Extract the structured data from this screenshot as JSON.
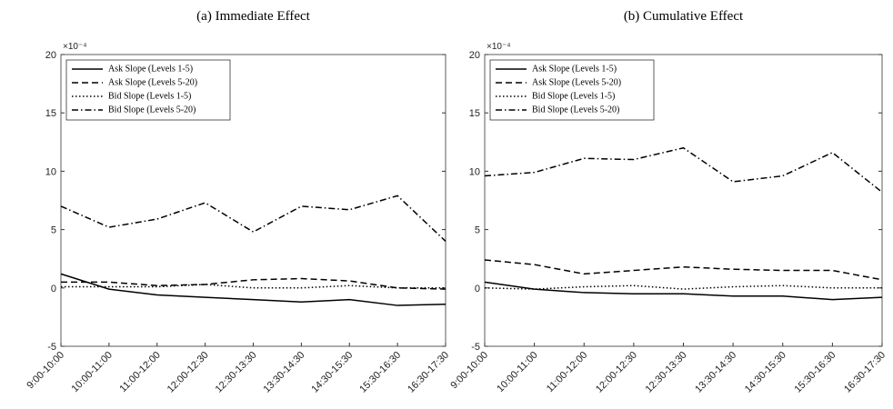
{
  "chart_data": [
    {
      "type": "line",
      "title": "(a) Immediate Effect",
      "y_multiplier": "×10⁻⁴",
      "categories": [
        "9:00-10:00",
        "10:00-11:00",
        "11:00-12:00",
        "12:00-12:30",
        "12:30-13:30",
        "13:30-14:30",
        "14:30-15:30",
        "15:30-16:30",
        "16:30-17:30"
      ],
      "ylim": [
        -5,
        20
      ],
      "yticks": [
        -5,
        0,
        5,
        10,
        15,
        20
      ],
      "legend": "upper left",
      "series": [
        {
          "name": "Ask Slope (Levels 1-5)",
          "color": "#000000",
          "dash": "solid",
          "values": [
            1.2,
            -0.1,
            -0.6,
            -0.8,
            -1.0,
            -1.2,
            -1.0,
            -1.5,
            -1.4
          ]
        },
        {
          "name": "Ask Slope (Levels 5-20)",
          "color": "#000000",
          "dash": "dashed",
          "values": [
            0.5,
            0.5,
            0.2,
            0.3,
            0.7,
            0.8,
            0.6,
            0.0,
            -0.1
          ]
        },
        {
          "name": "Bid Slope (Levels 1-5)",
          "color": "#000000",
          "dash": "dotted",
          "values": [
            0.1,
            0.1,
            0.1,
            0.3,
            0.0,
            0.0,
            0.2,
            0.0,
            0.0
          ]
        },
        {
          "name": "Bid Slope (Levels 5-20)",
          "color": "#000000",
          "dash": "dashdot",
          "values": [
            7.0,
            5.2,
            5.9,
            7.3,
            4.8,
            7.0,
            6.7,
            7.9,
            4.0
          ]
        }
      ]
    },
    {
      "type": "line",
      "title": "(b) Cumulative Effect",
      "y_multiplier": "×10⁻⁴",
      "categories": [
        "9:00-10:00",
        "10:00-11:00",
        "11:00-12:00",
        "12:00-12:30",
        "12:30-13:30",
        "13:30-14:30",
        "14:30-15:30",
        "15:30-16:30",
        "16:30-17:30"
      ],
      "ylim": [
        -5,
        20
      ],
      "yticks": [
        -5,
        0,
        5,
        10,
        15,
        20
      ],
      "legend": "upper left",
      "series": [
        {
          "name": "Ask Slope (Levels 1-5)",
          "color": "#000000",
          "dash": "solid",
          "values": [
            0.5,
            -0.1,
            -0.4,
            -0.5,
            -0.5,
            -0.7,
            -0.7,
            -1.0,
            -0.8
          ]
        },
        {
          "name": "Ask Slope (Levels 5-20)",
          "color": "#000000",
          "dash": "dashed",
          "values": [
            2.4,
            2.0,
            1.2,
            1.5,
            1.8,
            1.6,
            1.5,
            1.5,
            0.7
          ]
        },
        {
          "name": "Bid Slope (Levels 1-5)",
          "color": "#000000",
          "dash": "dotted",
          "values": [
            0.0,
            -0.1,
            0.1,
            0.2,
            -0.1,
            0.1,
            0.2,
            0.0,
            0.0
          ]
        },
        {
          "name": "Bid Slope (Levels 5-20)",
          "color": "#000000",
          "dash": "dashdot",
          "values": [
            9.6,
            9.9,
            11.1,
            11.0,
            12.0,
            9.1,
            9.6,
            11.6,
            8.2
          ]
        }
      ]
    }
  ]
}
